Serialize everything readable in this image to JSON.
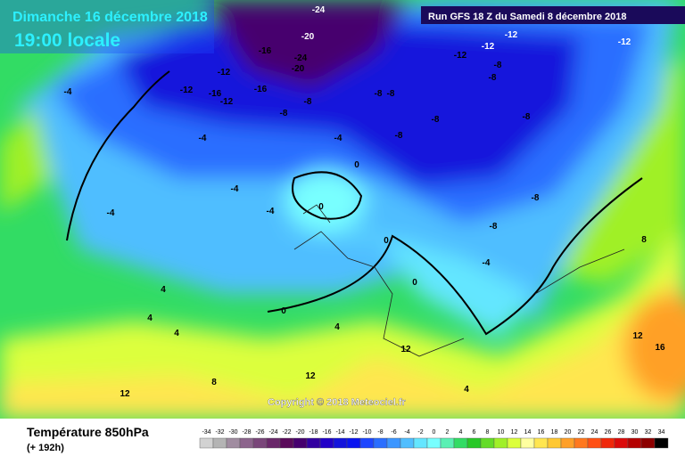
{
  "header": {
    "date": "Dimanche 16 décembre 2018",
    "time": "19:00 locale",
    "run": "Run GFS 18 Z du Samedi 8 décembre 2018",
    "copyright": "Copyright © 2018 Meteociel.fr"
  },
  "footer": {
    "title": "Température 850hPa",
    "lead": "(+ 192h)"
  },
  "scale": {
    "values": [
      -34,
      -32,
      -30,
      -28,
      -26,
      -24,
      -22,
      -20,
      -18,
      -16,
      -14,
      -12,
      -10,
      -8,
      -6,
      -4,
      -2,
      0,
      2,
      4,
      6,
      8,
      10,
      12,
      14,
      16,
      18,
      20,
      22,
      24,
      26,
      28,
      30,
      32,
      34
    ],
    "colors": [
      "#d2d2d2",
      "#b4b4b4",
      "#a08ca0",
      "#8c648c",
      "#7a467a",
      "#6a286a",
      "#5a0a5a",
      "#46006e",
      "#3200a0",
      "#2200c8",
      "#1414dc",
      "#0a14f0",
      "#1e46ff",
      "#2a6eff",
      "#3c96ff",
      "#50beff",
      "#64e6ff",
      "#78ffff",
      "#5af0b4",
      "#32dc64",
      "#28c828",
      "#64dc28",
      "#a0f028",
      "#dcff3c",
      "#ffffa0",
      "#ffe650",
      "#ffc832",
      "#ffa028",
      "#ff781e",
      "#ff5014",
      "#f0280a",
      "#dc0a0a",
      "#b40000",
      "#8c0000",
      "#000000"
    ]
  },
  "contour_labels": [
    "-24",
    "-20",
    "-16",
    "-24",
    "-20",
    "-12",
    "-12",
    "-16",
    "-16",
    "-12",
    "-8",
    "-8",
    "-4",
    "-4",
    "-8",
    "-8",
    "-8",
    "-8",
    "-12",
    "-12",
    "-8",
    "-8",
    "-8",
    "-4",
    "-4",
    "-4",
    "-4",
    "0",
    "0",
    "0",
    "0",
    "0",
    "-4",
    "-8",
    "-8",
    "4",
    "4",
    "4",
    "4",
    "8",
    "12",
    "12",
    "12",
    "16",
    "12",
    "4",
    "8",
    "-12",
    "-12"
  ]
}
